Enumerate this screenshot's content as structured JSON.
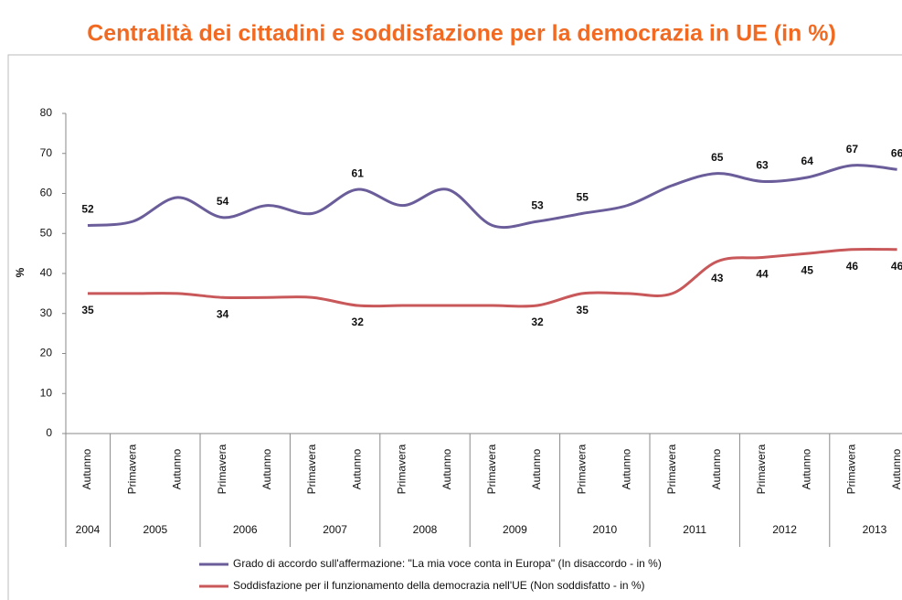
{
  "chart_data": {
    "type": "line",
    "title": "Centralità dei cittadini e soddisfazione per la democrazia in UE (in %)",
    "ylabel": "%",
    "categories": [
      "Autunno",
      "Primavera",
      "Autunno",
      "Primavera",
      "Autunno",
      "Primavera",
      "Autunno",
      "Primavera",
      "Autunno",
      "Primavera",
      "Autunno",
      "Primavera",
      "Autunno",
      "Primavera",
      "Autunno",
      "Primavera",
      "Autunno",
      "Primavera",
      "Autunno"
    ],
    "years": [
      "2004",
      "2005",
      "2006",
      "2007",
      "2008",
      "2009",
      "2010",
      "2011",
      "2012",
      "2013"
    ],
    "ylim": [
      0,
      80
    ],
    "yticks": [
      0,
      10,
      20,
      30,
      40,
      50,
      60,
      70,
      80
    ],
    "grid": false,
    "series": [
      {
        "name": "Grado di accordo sull'affermazione: \"La mia voce conta in Europa\" (In disaccordo - in %)",
        "color": "#6a5d9a",
        "values": [
          52,
          53,
          59,
          54,
          57,
          55,
          61,
          57,
          61,
          52,
          53,
          55,
          57,
          62,
          65,
          63,
          64,
          67,
          66
        ],
        "value_labels": [
          "52",
          null,
          null,
          "54",
          null,
          null,
          "61",
          null,
          null,
          null,
          "53",
          "55",
          null,
          null,
          "65",
          "63",
          "64",
          "67",
          "66"
        ]
      },
      {
        "name": "Soddisfazione per il funzionamento della democrazia nell'UE  (Non soddisfatto - in %)",
        "color": "#c8585a",
        "values": [
          35,
          35,
          35,
          34,
          34,
          34,
          32,
          32,
          32,
          32,
          32,
          35,
          35,
          35,
          43,
          44,
          45,
          46,
          46
        ],
        "value_labels": [
          "35",
          null,
          null,
          "34",
          null,
          null,
          "32",
          null,
          null,
          null,
          "32",
          "35",
          null,
          null,
          "43",
          "44",
          "45",
          "46",
          "46"
        ]
      }
    ]
  }
}
